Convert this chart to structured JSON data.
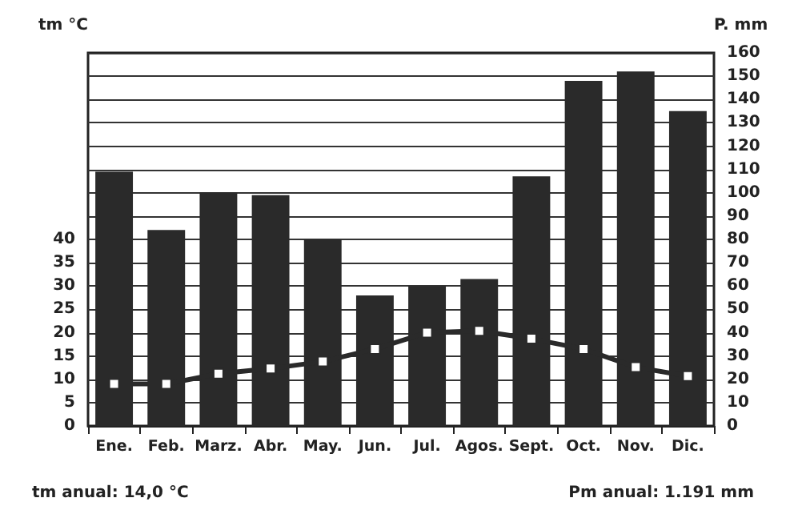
{
  "chart_data": {
    "type": "bar",
    "ylabel": "tm °C",
    "y2label": "P. mm",
    "categories": [
      "Ene.",
      "Feb.",
      "Marz.",
      "Abr.",
      "May.",
      "Jun.",
      "Jul.",
      "Agos.",
      "Sept.",
      "Oct.",
      "Nov.",
      "Dic."
    ],
    "series": [
      {
        "axis": "y2",
        "color": "#2a2a2a",
        "values": [
          109,
          84,
          100,
          99,
          80,
          56,
          60,
          63,
          107,
          148,
          152,
          135
        ]
      },
      {
        "type": "line",
        "axis": "y",
        "color": "#2a2a2a",
        "marker": "square",
        "line_style": "solid",
        "values": [
          9,
          9,
          11.2,
          12.3,
          13.8,
          16.5,
          20,
          20.4,
          18.7,
          16.5,
          12.6,
          10.7
        ]
      }
    ],
    "ylim": [
      0,
      80
    ],
    "yticks": [
      0,
      5,
      10,
      15,
      20,
      25,
      30,
      35,
      40
    ],
    "y2lim": [
      0,
      160
    ],
    "y2ticks": [
      0,
      10,
      20,
      30,
      40,
      50,
      60,
      70,
      80,
      90,
      100,
      110,
      120,
      130,
      140,
      150,
      160
    ],
    "grid": "y",
    "annotations": [
      "tm anual: 14,0 °C",
      "Pm anual: 1.191 mm"
    ]
  }
}
